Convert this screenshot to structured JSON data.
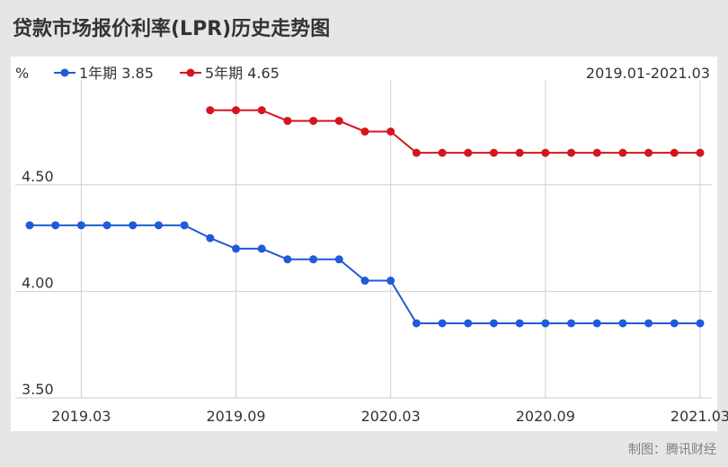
{
  "page": {
    "title": "贷款市场报价利率(LPR)历史走势图",
    "credit": "制图：腾讯财经"
  },
  "chart_data": {
    "type": "line",
    "title": "贷款市场报价利率(LPR)历史走势图",
    "unit_label": "%",
    "date_range": "2019.01-2021.03",
    "xlabel": "",
    "ylabel": "",
    "ylim": [
      3.5,
      4.95
    ],
    "y_ticks": [
      3.5,
      4.0,
      4.5
    ],
    "y_tick_labels": [
      "3.50",
      "4.00",
      "4.50"
    ],
    "x_ticks": [
      "2019.03",
      "2019.09",
      "2020.03",
      "2020.09",
      "2021.03"
    ],
    "grid": true,
    "legend_position": "top-left",
    "x": [
      "2019.01",
      "2019.02",
      "2019.03",
      "2019.04",
      "2019.05",
      "2019.06",
      "2019.07",
      "2019.08",
      "2019.09",
      "2019.10",
      "2019.11",
      "2019.12",
      "2020.01",
      "2020.02",
      "2020.03",
      "2020.04",
      "2020.05",
      "2020.06",
      "2020.07",
      "2020.08",
      "2020.09",
      "2020.10",
      "2020.11",
      "2020.12",
      "2021.01",
      "2021.02",
      "2021.03"
    ],
    "series": [
      {
        "name": "1年期",
        "legend_label": "1年期 3.85",
        "color": "#1f5bd8",
        "values": [
          4.31,
          4.31,
          4.31,
          4.31,
          4.31,
          4.31,
          4.31,
          4.25,
          4.2,
          4.2,
          4.15,
          4.15,
          4.15,
          4.05,
          4.05,
          3.85,
          3.85,
          3.85,
          3.85,
          3.85,
          3.85,
          3.85,
          3.85,
          3.85,
          3.85,
          3.85,
          3.85
        ]
      },
      {
        "name": "5年期",
        "legend_label": "5年期 4.65",
        "color": "#d7141e",
        "values": [
          null,
          null,
          null,
          null,
          null,
          null,
          null,
          4.85,
          4.85,
          4.85,
          4.8,
          4.8,
          4.8,
          4.75,
          4.75,
          4.65,
          4.65,
          4.65,
          4.65,
          4.65,
          4.65,
          4.65,
          4.65,
          4.65,
          4.65,
          4.65,
          4.65
        ]
      }
    ]
  }
}
